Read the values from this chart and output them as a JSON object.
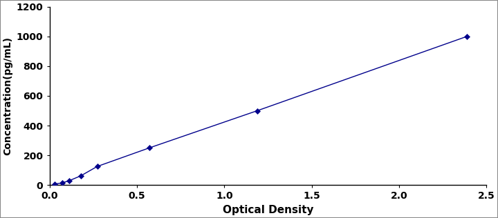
{
  "x_data": [
    0.031,
    0.074,
    0.114,
    0.179,
    0.273,
    0.571,
    1.188,
    2.388
  ],
  "y_data": [
    7,
    15,
    30,
    62,
    125,
    250,
    500,
    1000
  ],
  "line_color": "#00008B",
  "marker_color": "#00008B",
  "marker_style": "D",
  "marker_size": 4,
  "line_width": 1.0,
  "xlabel": "Optical Density",
  "ylabel": "Concentration(pg/mL)",
  "xlim": [
    0,
    2.5
  ],
  "ylim": [
    0,
    1200
  ],
  "xticks": [
    0,
    0.5,
    1,
    1.5,
    2,
    2.5
  ],
  "yticks": [
    0,
    200,
    400,
    600,
    800,
    1000,
    1200
  ],
  "xlabel_fontsize": 11,
  "ylabel_fontsize": 10,
  "tick_fontsize": 10,
  "background_color": "#ffffff",
  "plot_bg_color": "#ffffff",
  "border_color": "#888888"
}
